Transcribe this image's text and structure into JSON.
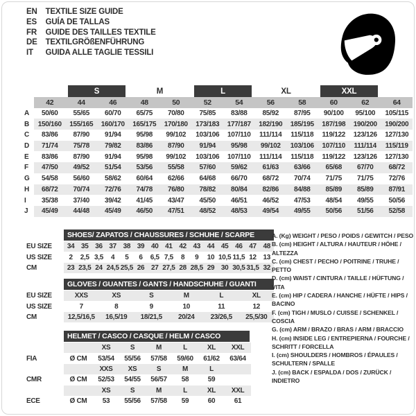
{
  "colors": {
    "band_dark": "#3b3b3b",
    "band_gray": "#c5c5c5",
    "row_stripe": "#e9e9e9",
    "text": "#2e2e2e"
  },
  "languages": {
    "rows": [
      [
        "EN",
        "TEXTILE SIZE GUIDE"
      ],
      [
        "ES",
        "GUÍA DE TALLAS"
      ],
      [
        "FR",
        "GUIDE DES TAILLES TEXTILE"
      ],
      [
        "DE",
        "TEXTILGRÖßENFÜHRUNG"
      ],
      [
        "IT",
        "GUIDA ALLE TAGLIE TESSILI"
      ]
    ]
  },
  "icons": {
    "helmet": "full-face-racing-helmet"
  },
  "textile": {
    "size_bands": [
      {
        "label": "S",
        "style": "dark"
      },
      {
        "label": "M",
        "style": "plain"
      },
      {
        "label": "L",
        "style": "dark"
      },
      {
        "label": "XL",
        "style": "plain"
      },
      {
        "label": "XXL",
        "style": "dark"
      }
    ],
    "rows": [
      [
        "",
        "42",
        "44",
        "46",
        "48",
        "50",
        "52",
        "54",
        "56",
        "58",
        "60",
        "62",
        "64"
      ],
      [
        "A",
        "50/60",
        "55/65",
        "60/70",
        "65/75",
        "70/80",
        "75/85",
        "83/88",
        "85/92",
        "87/95",
        "90/100",
        "95/100",
        "105/115"
      ],
      [
        "B",
        "150/160",
        "155/165",
        "160/170",
        "165/175",
        "170/180",
        "173/183",
        "177/187",
        "182/190",
        "185/195",
        "187/198",
        "190/200",
        "190/200"
      ],
      [
        "C",
        "83/86",
        "87/90",
        "91/94",
        "95/98",
        "99/102",
        "103/106",
        "107/110",
        "111/114",
        "115/118",
        "119/122",
        "123/126",
        "127/130"
      ],
      [
        "D",
        "71/74",
        "75/78",
        "79/82",
        "83/86",
        "87/90",
        "91/94",
        "95/98",
        "99/102",
        "103/106",
        "107/110",
        "111/114",
        "115/119"
      ],
      [
        "E",
        "83/86",
        "87/90",
        "91/94",
        "95/98",
        "99/102",
        "103/106",
        "107/110",
        "111/114",
        "115/118",
        "119/122",
        "123/126",
        "127/130"
      ],
      [
        "F",
        "47/50",
        "49/52",
        "51/54",
        "53/56",
        "55/58",
        "57/60",
        "59/62",
        "61/63",
        "63/66",
        "65/68",
        "67/70",
        "68/72"
      ],
      [
        "G",
        "54/58",
        "56/60",
        "58/62",
        "60/64",
        "62/66",
        "64/68",
        "66/70",
        "68/72",
        "70/74",
        "71/75",
        "71/75",
        "72/76"
      ],
      [
        "H",
        "68/72",
        "70/74",
        "72/76",
        "74/78",
        "76/80",
        "78/82",
        "80/84",
        "82/86",
        "84/88",
        "85/89",
        "85/89",
        "87/91"
      ],
      [
        "I",
        "35/38",
        "37/40",
        "39/42",
        "41/45",
        "43/47",
        "45/50",
        "46/51",
        "46/52",
        "47/53",
        "48/54",
        "49/55",
        "50/56"
      ],
      [
        "J",
        "45/49",
        "44/48",
        "45/49",
        "46/50",
        "47/51",
        "48/52",
        "48/53",
        "49/54",
        "49/55",
        "50/56",
        "51/56",
        "52/58"
      ]
    ]
  },
  "shoes": {
    "title": "SHOES/ ZAPATOS / CHAUSSURES / SCHUHE / SCARPE",
    "rows": [
      [
        "EU SIZE",
        "34",
        "35",
        "36",
        "37",
        "38",
        "39",
        "40",
        "41",
        "42",
        "43",
        "44",
        "45",
        "46",
        "47",
        "48"
      ],
      [
        "US SIZE",
        "2",
        "2,5",
        "3,5",
        "4",
        "5",
        "6",
        "6,5",
        "7,5",
        "8",
        "9",
        "10",
        "10,5",
        "11,5",
        "12",
        "13"
      ],
      [
        "CM",
        "23",
        "23,5",
        "24",
        "24,5",
        "25,5",
        "26",
        "27",
        "27,5",
        "28",
        "28,5",
        "29",
        "30",
        "30,5",
        "31,5",
        "32"
      ]
    ]
  },
  "gloves": {
    "title": "GLOVES / GUANTES / GANTS / HANDSCHUHE / GUANTI",
    "rows": [
      [
        "EU SIZE",
        "XXS",
        "XS",
        "S",
        "M",
        "L",
        "XL"
      ],
      [
        "US SIZE",
        "7",
        "8",
        "9",
        "10",
        "11",
        "12"
      ],
      [
        "CM",
        "12,5/16,5",
        "16,5/19",
        "18/21,5",
        "20/24",
        "23/26,5",
        "25,5/30"
      ]
    ]
  },
  "helmet": {
    "title": "HELMET / CASCO / CASQUE / HELM / CASCO",
    "rows": [
      [
        "",
        "",
        "XS",
        "S",
        "M",
        "L",
        "XL",
        "XXL"
      ],
      [
        "FIA",
        "Ø CM",
        "53/54",
        "55/56",
        "57/58",
        "59/60",
        "61/62",
        "63/64"
      ],
      [
        "",
        "",
        "XXS",
        "XS",
        "S",
        "M",
        "L",
        ""
      ],
      [
        "CMR",
        "Ø CM",
        "52/53",
        "54/55",
        "56/57",
        "58",
        "59",
        ""
      ],
      [
        "",
        "",
        "XS",
        "S",
        "M",
        "L",
        "XL",
        "XXL"
      ],
      [
        "ECE",
        "Ø CM",
        "53",
        "55/56",
        "57/58",
        "59",
        "60",
        "61"
      ]
    ]
  },
  "legend": {
    "items": [
      "A. (Kg) WEIGHT / PESO / POIDS / GEWITCH / PESO",
      "B. (cm) HEIGHT / ALTURA / HAUTEUR / HÖHE / ALTEZZA",
      "C. (cm) CHEST / PECHO / POITRINE / TRUHE / PETTO",
      "D. (cm) WAIST / CINTURA / TAILLE / HÜFTUNG / VITA",
      "E. (cm) HIP / CADERA / HANCHE / HÜFTE / HIPS / BACINO",
      "F. (cm) TIGH / MUSLO / CUISSE / SCHENKEL / COSCIA",
      "G. (cm) ARM / BRAZO / BRAS / ARM / BRACCIO",
      "H. (cm) INSIDE LEG / ENTREPIERNA / FOURCHE / SCHRITT / FORCELLA",
      "I. (cm) SHOULDERS / HOMBROS / ÉPAULES / SCHULTERN / SPALLE",
      "J. (cm) BACK / ESPALDA / DOS / ZURÜCK / INDIETRO"
    ]
  }
}
